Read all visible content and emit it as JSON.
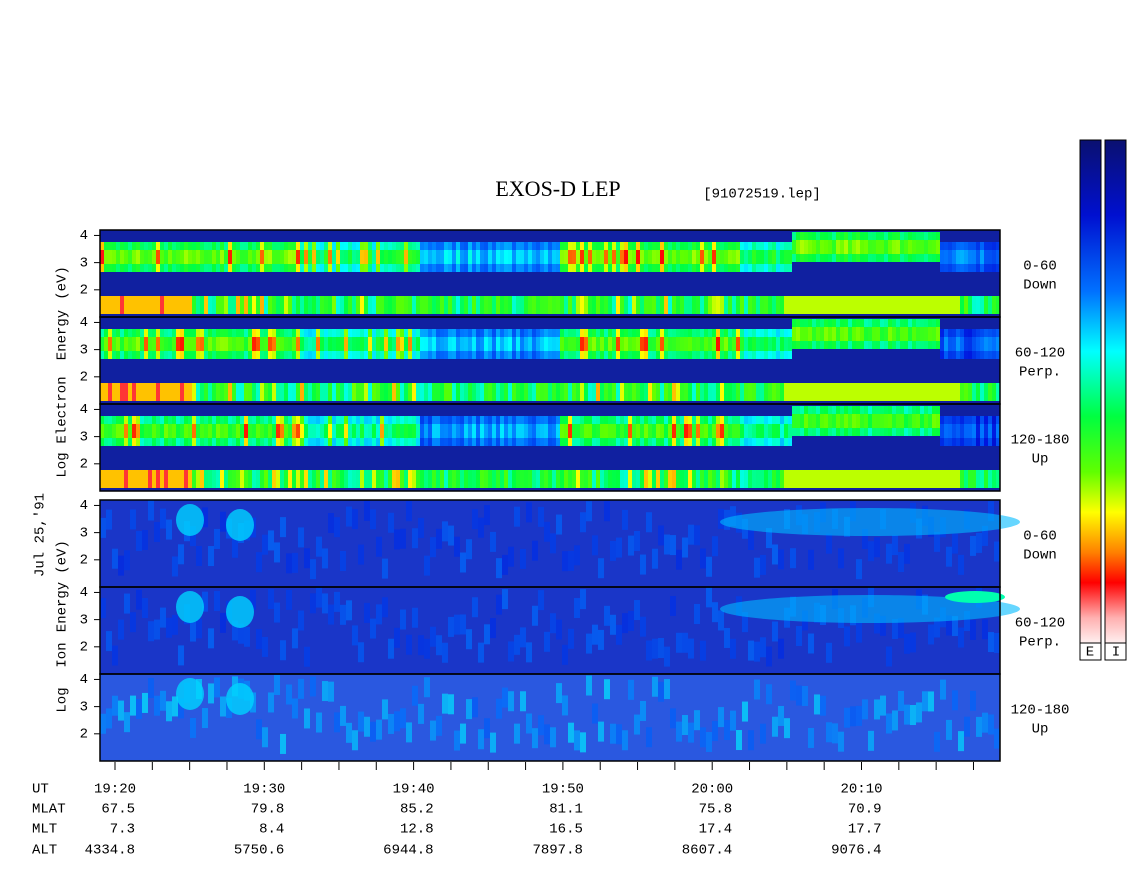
{
  "header": {
    "title": "EXOS-D LEP",
    "file": "[91072519.lep]"
  },
  "date": "Jul 25,'91",
  "y_axis": {
    "ylim": [
      1,
      4.2
    ],
    "yticks": [
      2,
      3,
      4
    ]
  },
  "electron": {
    "axis_label": [
      "Log",
      "Electron",
      "Energy",
      "(eV)"
    ],
    "panels": [
      {
        "angle": "0-60",
        "direction": "Down"
      },
      {
        "angle": "60-120",
        "direction": "Perp."
      },
      {
        "angle": "120-180",
        "direction": "Up"
      }
    ]
  },
  "ion": {
    "axis_label": [
      "Log",
      "Ion",
      "Energy",
      "(eV)"
    ],
    "panels": [
      {
        "angle": "0-60",
        "direction": "Down"
      },
      {
        "angle": "60-120",
        "direction": "Perp."
      },
      {
        "angle": "120-180",
        "direction": "Up"
      }
    ]
  },
  "x_axis": {
    "rows": [
      {
        "label": "UT",
        "values": [
          "19:20",
          "19:30",
          "19:40",
          "19:50",
          "20:00",
          "20:10"
        ]
      },
      {
        "label": "MLAT",
        "values": [
          67.5,
          79.8,
          85.2,
          81.1,
          75.8,
          70.9
        ]
      },
      {
        "label": "MLT",
        "values": [
          7.3,
          8.4,
          12.8,
          16.5,
          17.4,
          17.7
        ]
      },
      {
        "label": "ALT",
        "values": [
          4334.8,
          5750.6,
          6944.8,
          7897.8,
          8607.4,
          9076.4
        ]
      }
    ]
  },
  "colorbar": {
    "labels": [
      "E",
      "I"
    ]
  }
}
